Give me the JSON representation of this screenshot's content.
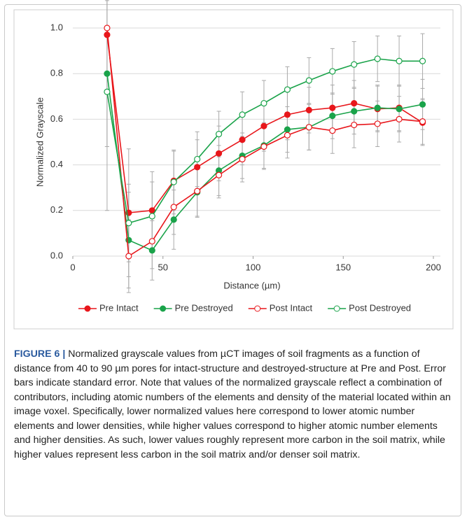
{
  "chart_data": {
    "type": "line",
    "x": [
      19,
      31,
      44,
      56,
      69,
      81,
      94,
      106,
      119,
      131,
      144,
      156,
      169,
      181,
      194
    ],
    "xlim": [
      0,
      200
    ],
    "xticks": [
      0,
      50,
      100,
      150,
      200
    ],
    "ylim": [
      0,
      1
    ],
    "yticks": [
      {
        "value": 0,
        "label": "0.0"
      },
      {
        "value": 0.2,
        "label": "0.2"
      },
      {
        "value": 0.4,
        "label": "0.4"
      },
      {
        "value": 0.6,
        "label": "0.6"
      },
      {
        "value": 0.8,
        "label": "0.8"
      },
      {
        "value": 1,
        "label": "1.0"
      }
    ],
    "xlabel": "Distance (µm)",
    "ylabel": "Normalized Grayscale",
    "error_color": "#aaaaaa",
    "legend": "bottom",
    "series": [
      {
        "name": "Pre Intact",
        "color": "#e8161b",
        "marker": "filled",
        "values": [
          0.97,
          0.19,
          0.2,
          0.33,
          0.39,
          0.45,
          0.51,
          0.57,
          0.62,
          0.64,
          0.65,
          0.67,
          0.645,
          0.65,
          0.585
        ],
        "errors": [
          0.49,
          0.28,
          0.17,
          0.13,
          0.12,
          0.12,
          0.11,
          0.11,
          0.11,
          0.1,
          0.1,
          0.1,
          0.1,
          0.1,
          0.1
        ]
      },
      {
        "name": "Pre Destroyed",
        "color": "#1aa34a",
        "marker": "filled",
        "values": [
          0.8,
          0.07,
          0.025,
          0.16,
          0.28,
          0.375,
          0.44,
          0.485,
          0.555,
          0.565,
          0.615,
          0.635,
          0.65,
          0.645,
          0.665
        ],
        "errors": [
          0.32,
          0.21,
          0.13,
          0.13,
          0.11,
          0.11,
          0.1,
          0.1,
          0.1,
          0.1,
          0.1,
          0.1,
          0.1,
          0.1,
          0.11
        ]
      },
      {
        "name": "Post Intact",
        "color": "#e8161b",
        "marker": "open",
        "values": [
          1.0,
          0.0,
          0.065,
          0.215,
          0.285,
          0.355,
          0.425,
          0.48,
          0.53,
          0.565,
          0.55,
          0.575,
          0.58,
          0.6,
          0.59
        ],
        "errors": [
          0.52,
          0.16,
          0.12,
          0.12,
          0.11,
          0.1,
          0.1,
          0.1,
          0.1,
          0.1,
          0.1,
          0.1,
          0.1,
          0.1,
          0.1
        ]
      },
      {
        "name": "Post Destroyed",
        "color": "#1aa34a",
        "marker": "open",
        "values": [
          0.72,
          0.145,
          0.175,
          0.325,
          0.425,
          0.535,
          0.62,
          0.67,
          0.73,
          0.77,
          0.81,
          0.84,
          0.865,
          0.855,
          0.855
        ],
        "errors": [
          0.52,
          0.17,
          0.15,
          0.14,
          0.12,
          0.1,
          0.1,
          0.1,
          0.1,
          0.1,
          0.1,
          0.1,
          0.1,
          0.11,
          0.12
        ]
      }
    ]
  },
  "caption": {
    "label": "FIGURE 6 |",
    "text": "Normalized grayscale values from µCT images of soil fragments as a function of distance from 40 to 90 µm pores for intact-structure and destroyed-structure at Pre and Post. Error bars indicate standard error. Note that values of the normalized grayscale reflect a combination of contributors, including atomic numbers of the elements and density of the material located within an image voxel. Specifically, lower normalized values here correspond to lower atomic number elements and lower densities, while higher values correspond to higher atomic number elements and higher densities. As such, lower values roughly represent more carbon in the soil matrix, while higher values represent less carbon in the soil matrix and/or denser soil matrix."
  }
}
